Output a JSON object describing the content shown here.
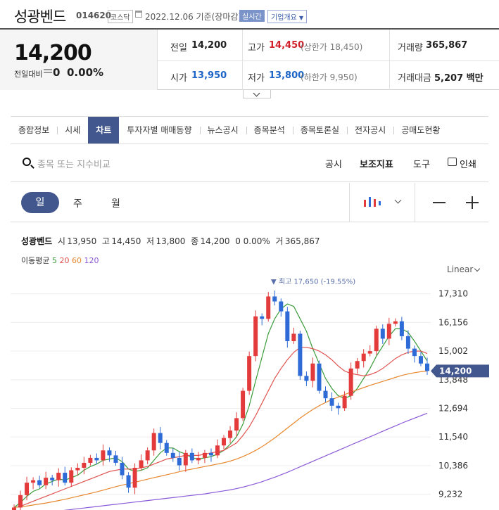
{
  "header": {
    "name": "성광벤드",
    "code": "014620",
    "market": "코스닥",
    "date": "2022.12.06",
    "date_basis": "기준(장마감)",
    "realtime": "실시간",
    "company": "기업개요"
  },
  "quote": {
    "price": "14,200",
    "change_label": "전일대비",
    "change_value": "0",
    "change_pct": "0.00%",
    "items": [
      {
        "label": "전일",
        "value": "14,200",
        "color": "plain"
      },
      {
        "label": "고가",
        "value": "14,450",
        "color": "red",
        "sub": "(상한가 18,450)"
      },
      {
        "label": "거래량",
        "value": "365,867",
        "color": "plain"
      },
      {
        "label": "시가",
        "value": "13,950",
        "color": "blue"
      },
      {
        "label": "저가",
        "value": "13,800",
        "color": "blue",
        "sub": "(하한가 9,950)"
      },
      {
        "label": "거래대금",
        "value": "5,207 백만",
        "color": "plain"
      }
    ]
  },
  "tabs": [
    "종합정보",
    "시세",
    "차트",
    "투자자별 매매동향",
    "뉴스공시",
    "종목분석",
    "종목토론실",
    "전자공시",
    "공매도현황"
  ],
  "active_tab": "차트",
  "search": {
    "placeholder": "종목 또는 지수비교",
    "tools": [
      "공시",
      "보조지표",
      "도구",
      "인쇄"
    ]
  },
  "period": {
    "options": [
      "일",
      "주",
      "월"
    ],
    "selected": "일"
  },
  "chart_info": {
    "name": "성광벤드",
    "open_label": "시",
    "open": "13,950",
    "high_label": "고",
    "high": "14,450",
    "low_label": "저",
    "low": "13,800",
    "close_label": "종",
    "close": "14,200",
    "change": "0 0.00%",
    "volume_label": "거",
    "volume": "365,867",
    "ma_label": "이동평균",
    "ma_periods": [
      "5",
      "20",
      "60",
      "120"
    ],
    "scale": "Linear"
  },
  "colors": {
    "up": "#e33b3b",
    "down": "#2e6bd6",
    "ma5": "#3a9b3a",
    "ma20": "#e0524f",
    "ma60": "#e8882f",
    "ma120": "#8a5ad8",
    "accent": "#41578d"
  },
  "chart_data": {
    "type": "line",
    "title": "",
    "y_ticks": [
      9232,
      10386,
      11540,
      12694,
      13848,
      15002,
      16156,
      17310
    ],
    "y_tick_labels": [
      "9,232",
      "10,386",
      "11,540",
      "12,694",
      "13,848",
      "15,002",
      "16,156",
      "17,310"
    ],
    "current_price": 14200,
    "current_price_label": "14,200",
    "high_annotation": "▼ 최고 17,650 (-19.55%)",
    "high_value": 17650,
    "ylim": [
      8600,
      17950
    ],
    "grid": true,
    "series": [
      {
        "name": "종가",
        "values": [
          8700,
          9200,
          9700,
          9800,
          9600,
          9900,
          9800,
          10100,
          9700,
          10200,
          10300,
          10500,
          10700,
          10600,
          11000,
          10800,
          10500,
          10000,
          9500,
          10300,
          10600,
          11000,
          11700,
          11300,
          10900,
          10700,
          10400,
          10900,
          10600,
          10700,
          10900,
          10800,
          11200,
          11500,
          11800,
          12300,
          13400,
          14800,
          16400,
          16300,
          17200,
          17000,
          16600,
          15400,
          15700,
          14000,
          13800,
          14500,
          13400,
          13100,
          12800,
          12700,
          13200,
          14300,
          14600,
          14900,
          15000,
          15900,
          15500,
          16100,
          16200,
          15600,
          15100,
          14800,
          14500,
          14200
        ]
      },
      {
        "name": "5",
        "values": [
          8700,
          8900,
          9150,
          9350,
          9450,
          9650,
          9750,
          9850,
          9800,
          9900,
          10000,
          10200,
          10350,
          10450,
          10600,
          10650,
          10700,
          10550,
          10250,
          10150,
          10200,
          10300,
          10600,
          10900,
          11100,
          11100,
          10950,
          10850,
          10700,
          10650,
          10700,
          10750,
          10850,
          11000,
          11250,
          11550,
          12050,
          12800,
          13800,
          14750,
          15700,
          16300,
          16700,
          16900,
          16800,
          16300,
          15800,
          15100,
          14500,
          13900,
          13500,
          13200,
          13100,
          13200,
          13500,
          13900,
          14300,
          14800,
          15200,
          15600,
          15900,
          15900,
          15750,
          15400,
          15000,
          14600
        ]
      },
      {
        "name": "20",
        "values": [
          8700,
          8750,
          8850,
          8950,
          9050,
          9150,
          9250,
          9350,
          9450,
          9550,
          9650,
          9750,
          9850,
          9950,
          10050,
          10150,
          10200,
          10250,
          10250,
          10250,
          10300,
          10350,
          10450,
          10550,
          10650,
          10700,
          10750,
          10800,
          10800,
          10800,
          10850,
          10900,
          10950,
          11000,
          11150,
          11300,
          11600,
          11950,
          12400,
          12900,
          13400,
          13900,
          14300,
          14650,
          14950,
          15150,
          15150,
          15100,
          15000,
          14850,
          14650,
          14400,
          14200,
          14100,
          14050,
          14000,
          14050,
          14150,
          14300,
          14500,
          14700,
          14850,
          14950,
          15000,
          15000,
          14900
        ]
      },
      {
        "name": "60",
        "values": [
          8700,
          8730,
          8760,
          8800,
          8840,
          8880,
          8930,
          8980,
          9030,
          9090,
          9150,
          9210,
          9270,
          9330,
          9400,
          9470,
          9540,
          9600,
          9660,
          9720,
          9780,
          9840,
          9900,
          9960,
          10020,
          10080,
          10140,
          10200,
          10250,
          10300,
          10350,
          10400,
          10450,
          10500,
          10570,
          10650,
          10750,
          10870,
          11000,
          11150,
          11320,
          11500,
          11700,
          11900,
          12100,
          12300,
          12480,
          12650,
          12800,
          12930,
          13050,
          13150,
          13250,
          13350,
          13440,
          13530,
          13620,
          13700,
          13780,
          13860,
          13940,
          14020,
          14080,
          14130,
          14170,
          14200
        ]
      },
      {
        "name": "120",
        "values": [
          8350,
          8380,
          8410,
          8440,
          8470,
          8500,
          8530,
          8560,
          8590,
          8620,
          8650,
          8680,
          8710,
          8740,
          8770,
          8800,
          8830,
          8860,
          8890,
          8920,
          8950,
          8980,
          9010,
          9040,
          9070,
          9100,
          9130,
          9160,
          9190,
          9220,
          9250,
          9290,
          9330,
          9370,
          9410,
          9460,
          9520,
          9590,
          9660,
          9740,
          9830,
          9920,
          10020,
          10120,
          10230,
          10340,
          10450,
          10560,
          10670,
          10780,
          10890,
          11000,
          11110,
          11220,
          11330,
          11440,
          11550,
          11660,
          11770,
          11880,
          11990,
          12100,
          12200,
          12300,
          12400,
          12500
        ]
      }
    ]
  }
}
